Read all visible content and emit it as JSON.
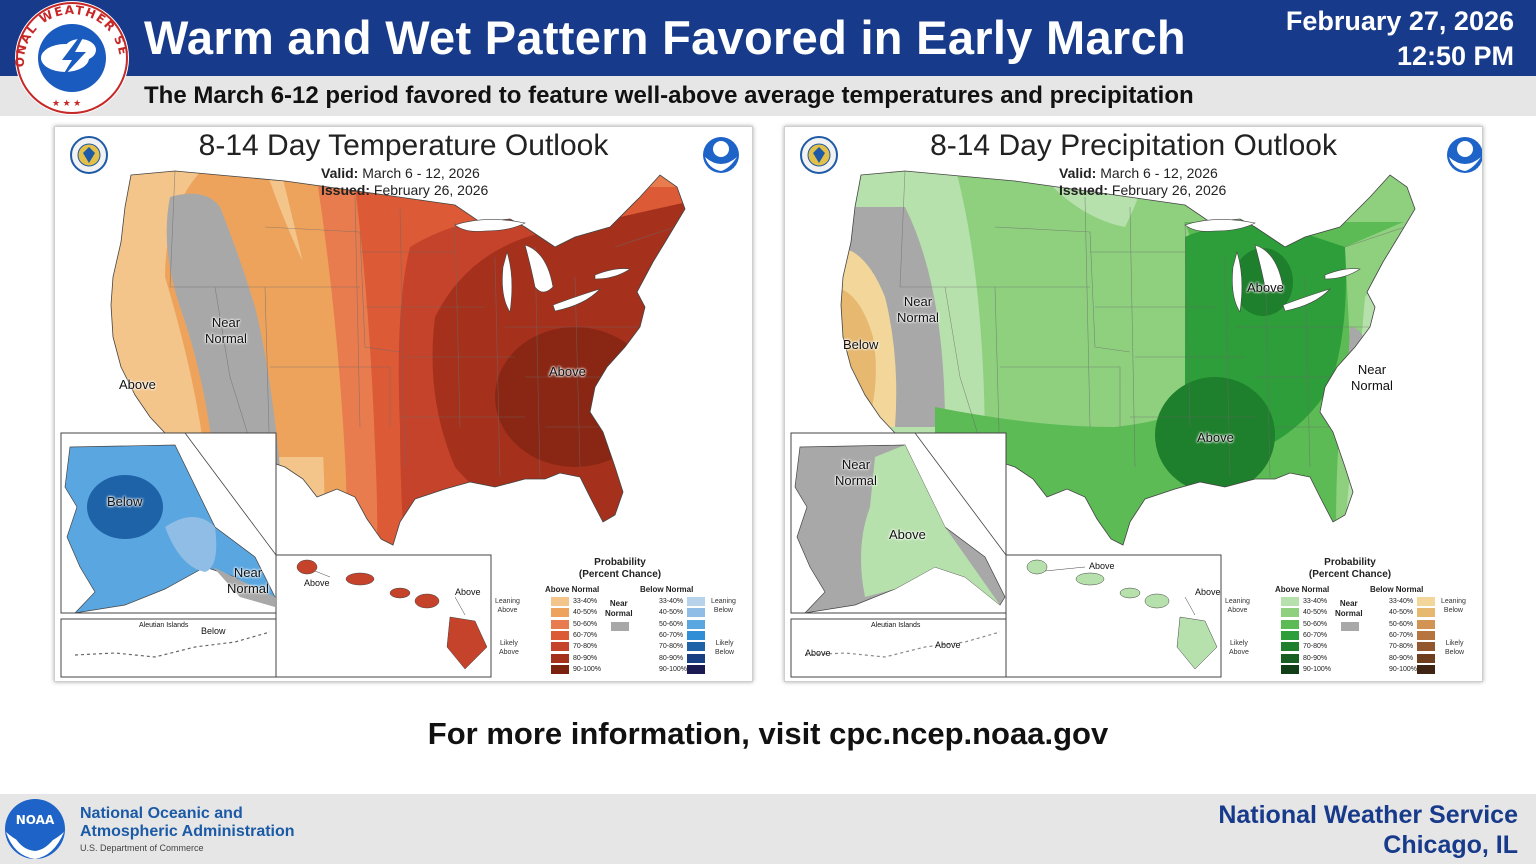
{
  "header": {
    "title": "Warm and Wet Pattern Favored in Early March",
    "date": "February 27, 2026",
    "time": "12:50 PM",
    "subtitle": "The March 6-12 period favored to feature well-above average temperatures and precipitation",
    "logo_text": "NATIONAL WEATHER SERVICE"
  },
  "temp_map": {
    "title": "8-14 Day Temperature Outlook",
    "valid_label": "Valid:",
    "valid_value": "March 6 - 12, 2026",
    "issued_label": "Issued:",
    "issued_value": "February 26, 2026",
    "labels": {
      "west_near": "Near\nNormal",
      "west_above": "Above",
      "east_above": "Above",
      "ak_below": "Below",
      "ak_near": "Near\nNormal",
      "hi_above_left": "Above",
      "hi_above_right": "Above",
      "aleutian": "Aleutian Islands",
      "aleutian_below": "Below"
    },
    "legend": {
      "title": "Probability\n(Percent Chance)",
      "above_head": "Above Normal",
      "below_head": "Below Normal",
      "near": "Near\nNormal",
      "leaning_above": "Leaning\nAbove",
      "likely_above": "Likely\nAbove",
      "leaning_below": "Leaning\nBelow",
      "likely_below": "Likely\nBelow",
      "ranges": [
        "33-40%",
        "40-50%",
        "50-60%",
        "60-70%",
        "70-80%",
        "80-90%",
        "90-100%"
      ],
      "above_colors": [
        "#f3c58a",
        "#eea35d",
        "#e87c4e",
        "#dc5a36",
        "#c5432a",
        "#a5311d",
        "#7a2110"
      ],
      "below_colors": [
        "#b7d3ec",
        "#8fbde6",
        "#5aa6e0",
        "#2f8ed6",
        "#1e63a8",
        "#183f84",
        "#1b1a52"
      ],
      "near_color": "#a8a8a8"
    }
  },
  "precip_map": {
    "title": "8-14 Day Precipitation Outlook",
    "valid_label": "Valid:",
    "valid_value": "March 6 - 12, 2026",
    "issued_label": "Issued:",
    "issued_value": "February 26, 2026",
    "labels": {
      "west_near": "Near\nNormal",
      "west_below": "Below",
      "lakes_above": "Above",
      "south_above": "Above",
      "east_near": "Near\nNormal",
      "ak_near": "Near\nNormal",
      "ak_above": "Above",
      "hi_above_left": "Above",
      "hi_above_right": "Above",
      "aleutian": "Aleutian Islands",
      "aleutian_above_left": "Above",
      "aleutian_above_right": "Above"
    },
    "legend": {
      "title": "Probability\n(Percent Chance)",
      "above_head": "Above Normal",
      "below_head": "Below Normal",
      "near": "Near\nNormal",
      "leaning_above": "Leaning\nAbove",
      "likely_above": "Likely\nAbove",
      "leaning_below": "Leaning\nBelow",
      "likely_below": "Likely\nBelow",
      "ranges": [
        "33-40%",
        "40-50%",
        "50-60%",
        "60-70%",
        "70-80%",
        "80-90%",
        "90-100%"
      ],
      "above_colors": [
        "#b7e1ac",
        "#8fd07f",
        "#5cbb55",
        "#2e9e3a",
        "#1e7f2c",
        "#175f22",
        "#103f17"
      ],
      "below_colors": [
        "#f3d79a",
        "#e6b870",
        "#d29454",
        "#b6743f",
        "#93572d",
        "#6e3e1f",
        "#3f2413"
      ],
      "near_color": "#a8a8a8"
    }
  },
  "footer": {
    "more_info": "For more information, visit cpc.ncep.noaa.gov",
    "noaa_line1": "National Oceanic and",
    "noaa_line2": "Atmospheric Administration",
    "noaa_dept": "U.S. Department of Commerce",
    "noaa_logo_text": "NOAA",
    "office_line1": "National Weather Service",
    "office_line2": "Chicago, IL"
  }
}
